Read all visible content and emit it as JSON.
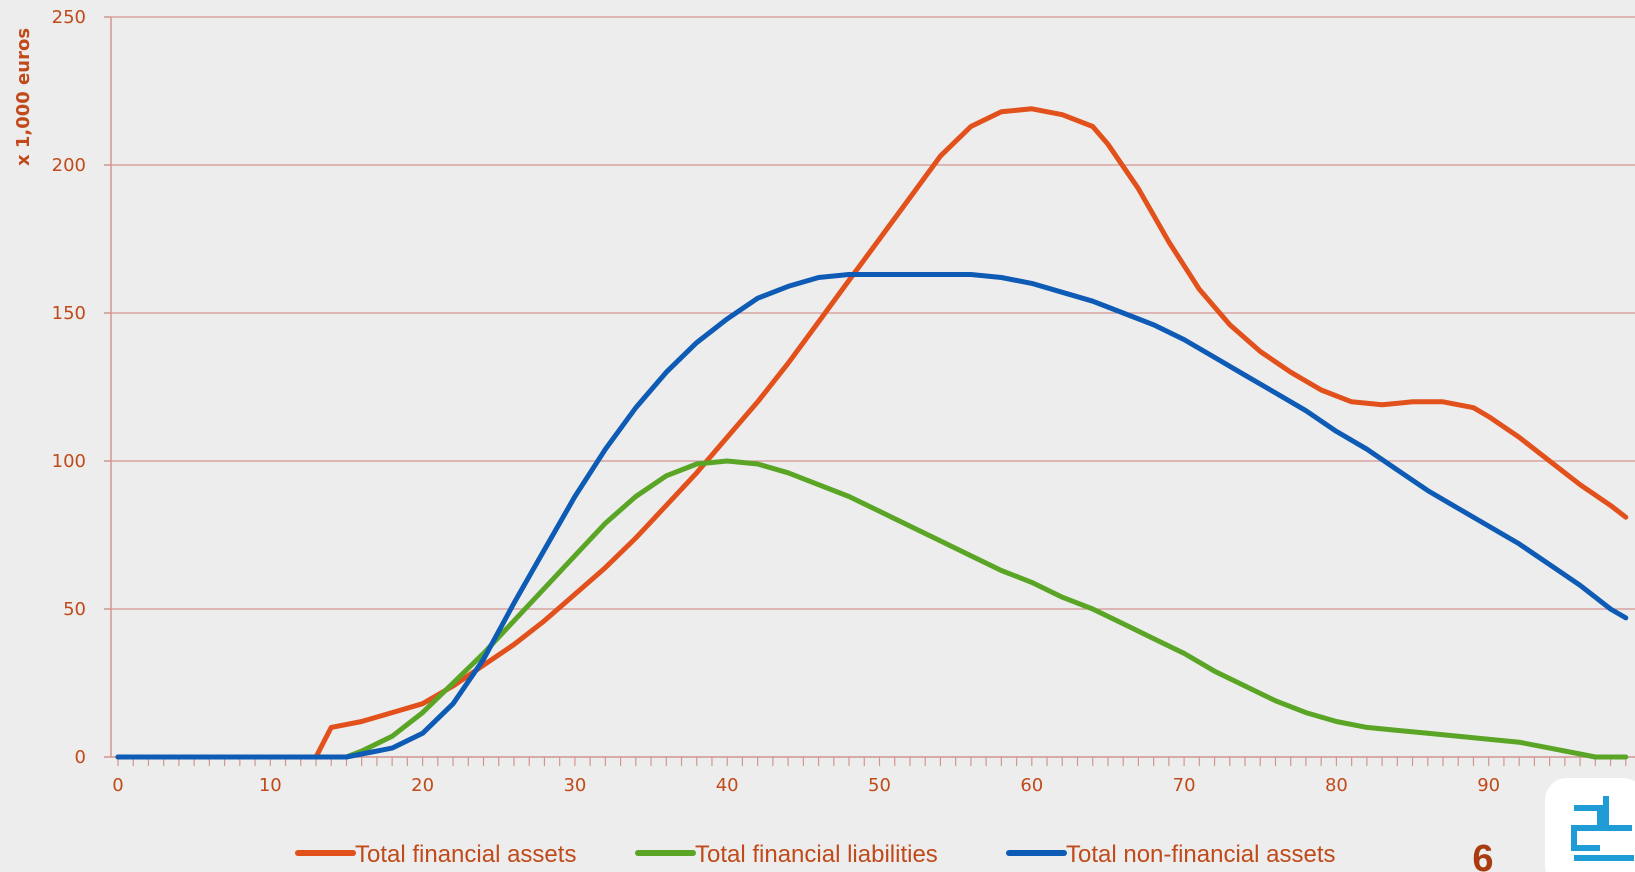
{
  "chart_data": {
    "type": "line",
    "title": "",
    "xlabel": "",
    "ylabel": "x 1,000 euros",
    "xlim": [
      0,
      99
    ],
    "ylim": [
      0,
      250
    ],
    "x_ticks": [
      0,
      10,
      20,
      30,
      40,
      50,
      60,
      70,
      80,
      90
    ],
    "y_ticks": [
      0,
      50,
      100,
      150,
      200,
      250
    ],
    "grid": "horizontal",
    "legend_position": "bottom",
    "series": [
      {
        "name": "Total financial assets",
        "color": "#e2501c",
        "points": [
          [
            0,
            0
          ],
          [
            13,
            0
          ],
          [
            14,
            10
          ],
          [
            16,
            12
          ],
          [
            18,
            15
          ],
          [
            20,
            18
          ],
          [
            22,
            24
          ],
          [
            24,
            31
          ],
          [
            26,
            38
          ],
          [
            28,
            46
          ],
          [
            30,
            55
          ],
          [
            32,
            64
          ],
          [
            34,
            74
          ],
          [
            36,
            85
          ],
          [
            38,
            96
          ],
          [
            40,
            108
          ],
          [
            42,
            120
          ],
          [
            44,
            133
          ],
          [
            46,
            147
          ],
          [
            48,
            161
          ],
          [
            50,
            175
          ],
          [
            52,
            189
          ],
          [
            54,
            203
          ],
          [
            56,
            213
          ],
          [
            58,
            218
          ],
          [
            60,
            219
          ],
          [
            62,
            217
          ],
          [
            64,
            213
          ],
          [
            65,
            207
          ],
          [
            67,
            192
          ],
          [
            69,
            174
          ],
          [
            71,
            158
          ],
          [
            73,
            146
          ],
          [
            75,
            137
          ],
          [
            77,
            130
          ],
          [
            79,
            124
          ],
          [
            81,
            120
          ],
          [
            83,
            119
          ],
          [
            85,
            120
          ],
          [
            87,
            120
          ],
          [
            89,
            118
          ],
          [
            90,
            115
          ],
          [
            92,
            108
          ],
          [
            94,
            100
          ],
          [
            96,
            92
          ],
          [
            98,
            85
          ],
          [
            99,
            81
          ]
        ]
      },
      {
        "name": "Total financial liabilities",
        "color": "#5aa526",
        "points": [
          [
            0,
            0
          ],
          [
            15,
            0
          ],
          [
            16,
            2
          ],
          [
            18,
            7
          ],
          [
            20,
            15
          ],
          [
            22,
            25
          ],
          [
            24,
            35
          ],
          [
            26,
            46
          ],
          [
            28,
            57
          ],
          [
            30,
            68
          ],
          [
            32,
            79
          ],
          [
            34,
            88
          ],
          [
            36,
            95
          ],
          [
            38,
            99
          ],
          [
            40,
            100
          ],
          [
            42,
            99
          ],
          [
            44,
            96
          ],
          [
            46,
            92
          ],
          [
            48,
            88
          ],
          [
            50,
            83
          ],
          [
            52,
            78
          ],
          [
            54,
            73
          ],
          [
            56,
            68
          ],
          [
            58,
            63
          ],
          [
            60,
            59
          ],
          [
            62,
            54
          ],
          [
            64,
            50
          ],
          [
            66,
            45
          ],
          [
            68,
            40
          ],
          [
            70,
            35
          ],
          [
            72,
            29
          ],
          [
            74,
            24
          ],
          [
            76,
            19
          ],
          [
            78,
            15
          ],
          [
            80,
            12
          ],
          [
            82,
            10
          ],
          [
            84,
            9
          ],
          [
            86,
            8
          ],
          [
            88,
            7
          ],
          [
            90,
            6
          ],
          [
            92,
            5
          ],
          [
            94,
            3
          ],
          [
            96,
            1
          ],
          [
            97,
            0
          ],
          [
            99,
            0
          ]
        ]
      },
      {
        "name": "Total non-financial assets",
        "color": "#0d5bb5",
        "points": [
          [
            0,
            0
          ],
          [
            15,
            0
          ],
          [
            16,
            1
          ],
          [
            18,
            3
          ],
          [
            20,
            8
          ],
          [
            22,
            18
          ],
          [
            24,
            33
          ],
          [
            26,
            52
          ],
          [
            28,
            70
          ],
          [
            30,
            88
          ],
          [
            32,
            104
          ],
          [
            34,
            118
          ],
          [
            36,
            130
          ],
          [
            38,
            140
          ],
          [
            40,
            148
          ],
          [
            42,
            155
          ],
          [
            44,
            159
          ],
          [
            46,
            162
          ],
          [
            48,
            163
          ],
          [
            50,
            163
          ],
          [
            52,
            163
          ],
          [
            54,
            163
          ],
          [
            56,
            163
          ],
          [
            58,
            162
          ],
          [
            60,
            160
          ],
          [
            62,
            157
          ],
          [
            64,
            154
          ],
          [
            66,
            150
          ],
          [
            68,
            146
          ],
          [
            70,
            141
          ],
          [
            72,
            135
          ],
          [
            74,
            129
          ],
          [
            76,
            123
          ],
          [
            78,
            117
          ],
          [
            80,
            110
          ],
          [
            82,
            104
          ],
          [
            84,
            97
          ],
          [
            86,
            90
          ],
          [
            88,
            84
          ],
          [
            90,
            78
          ],
          [
            92,
            72
          ],
          [
            94,
            65
          ],
          [
            96,
            58
          ],
          [
            98,
            50
          ],
          [
            99,
            47
          ]
        ]
      }
    ]
  },
  "page": {
    "number": "6",
    "logo_icon": "cbs-logo-icon"
  }
}
